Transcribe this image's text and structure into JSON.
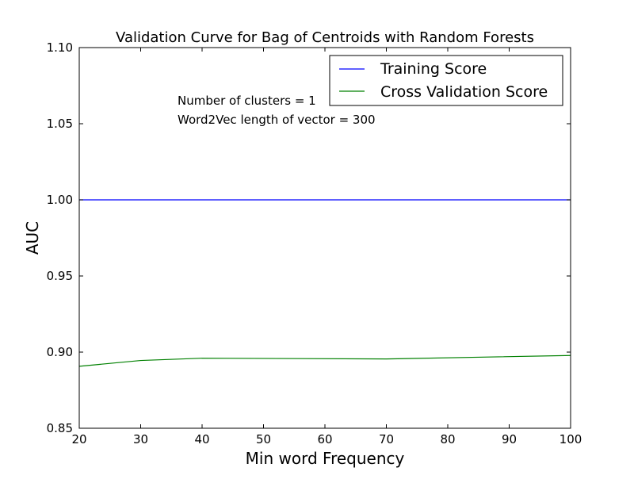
{
  "chart_data": {
    "type": "line",
    "title": "Validation Curve for Bag of Centroids with Random Forests",
    "xlabel": "Min word Frequency",
    "ylabel": "AUC",
    "xlim": [
      20,
      100
    ],
    "ylim": [
      0.85,
      1.1
    ],
    "xticks": [
      20,
      30,
      40,
      50,
      60,
      70,
      80,
      90,
      100
    ],
    "yticks": [
      0.85,
      0.9,
      0.95,
      1.0,
      1.05,
      1.1
    ],
    "xtick_labels": [
      "20",
      "30",
      "40",
      "50",
      "60",
      "70",
      "80",
      "90",
      "100"
    ],
    "ytick_labels": [
      "0.85",
      "0.90",
      "0.95",
      "1.00",
      "1.05",
      "1.10"
    ],
    "x": [
      20,
      30,
      40,
      70,
      100
    ],
    "series": [
      {
        "name": "Training Score",
        "color": "#0000ff",
        "values": [
          1.0,
          1.0,
          1.0,
          1.0,
          1.0
        ]
      },
      {
        "name": "Cross Validation Score",
        "color": "#008000",
        "values": [
          0.8907,
          0.8945,
          0.896,
          0.8955,
          0.8978
        ]
      }
    ],
    "annotations": [
      "Number of clusters = 1",
      "Word2Vec length of vector = 300"
    ],
    "legend": "top-right",
    "grid": false
  }
}
